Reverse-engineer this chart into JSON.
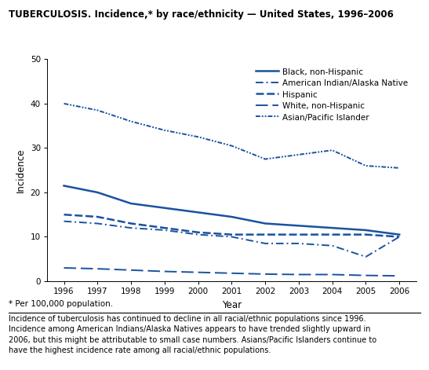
{
  "title": "TUBERCULOSIS. Incidence,* by race/ethnicity — United States, 1996–2006",
  "xlabel": "Year",
  "ylabel": "Incidence",
  "years": [
    1996,
    1997,
    1998,
    1999,
    2000,
    2001,
    2002,
    2003,
    2004,
    2005,
    2006
  ],
  "black_non_hispanic": [
    21.5,
    20.0,
    17.5,
    16.5,
    15.5,
    14.5,
    13.0,
    12.5,
    12.0,
    11.5,
    10.5
  ],
  "american_indian": [
    13.5,
    13.0,
    12.0,
    11.5,
    10.5,
    10.0,
    8.5,
    8.5,
    8.0,
    5.5,
    10.0
  ],
  "hispanic": [
    15.0,
    14.5,
    13.0,
    12.0,
    11.0,
    10.5,
    10.5,
    10.5,
    10.5,
    10.5,
    10.0
  ],
  "white_non_hispanic": [
    3.0,
    2.8,
    2.5,
    2.2,
    2.0,
    1.8,
    1.6,
    1.5,
    1.5,
    1.3,
    1.2
  ],
  "asian_pacific_islander": [
    40.0,
    38.5,
    36.0,
    34.0,
    32.5,
    30.5,
    27.5,
    28.5,
    29.5,
    26.0,
    25.5
  ],
  "line_color": "#1a52a0",
  "background_color": "#ffffff",
  "ylim": [
    0,
    50
  ],
  "yticks": [
    0,
    10,
    20,
    30,
    40,
    50
  ],
  "footnote1": "* Per 100,000 population.",
  "footnote2": "Incidence of tuberculosis has continued to decline in all racial/ethnic populations since 1996.\nIncidence among American Indians/Alaska Natives appears to have trended slightly upward in\n2006, but this might be attributable to small case numbers. Asians/Pacific Islanders continue to\nhave the highest incidence rate among all racial/ethnic populations."
}
